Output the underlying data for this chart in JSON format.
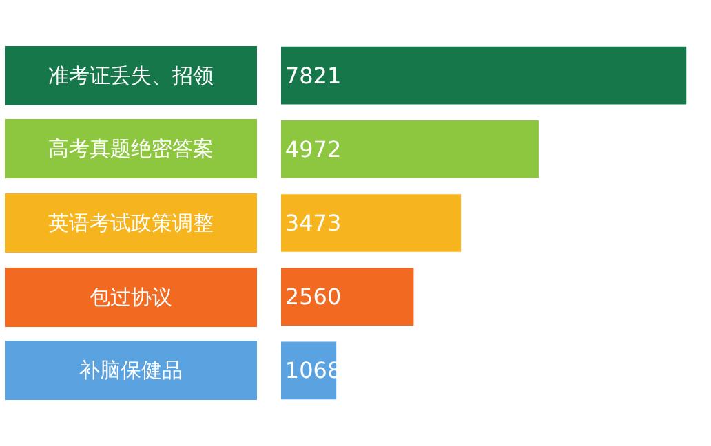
{
  "chart_data": {
    "type": "bar",
    "orientation": "horizontal",
    "categories": [
      "准考证丢失、招领",
      "高考真题绝密答案",
      "英语考试政策调整",
      "包过协议",
      "补脑保健品"
    ],
    "values": [
      7821,
      4972,
      3473,
      2560,
      1068
    ],
    "colors": [
      "#16784a",
      "#8dc63f",
      "#f6b51e",
      "#f26a22",
      "#5ba3e0"
    ],
    "data_labels": true
  }
}
